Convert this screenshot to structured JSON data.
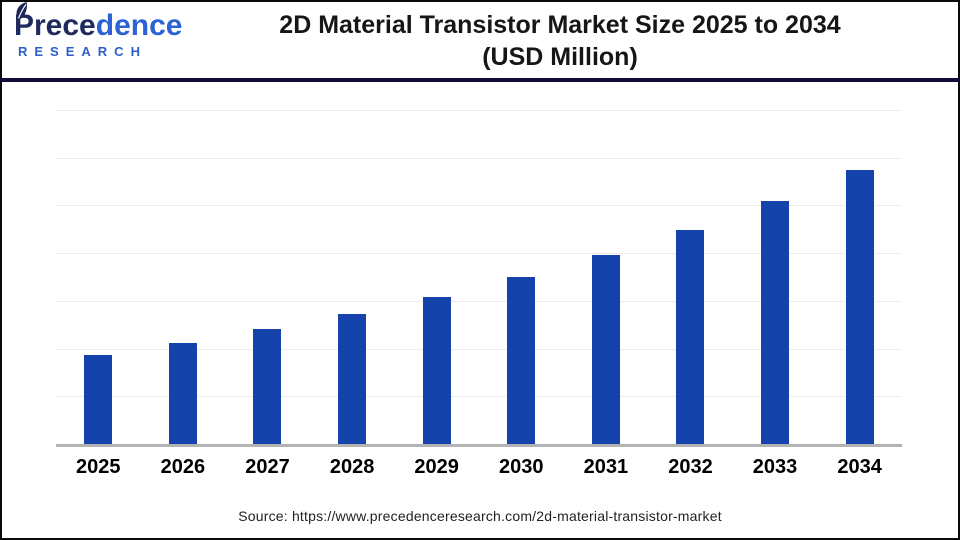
{
  "logo": {
    "brand_part1": "Prece",
    "brand_part2": "dence",
    "research": "RESEARCH"
  },
  "header": {
    "title_line1": "2D Material Transistor Market Size 2025 to 2034",
    "title_line2": "(USD Million)"
  },
  "footer": {
    "source_text": "Source: https://www.precedenceresearch.com/2d-material-transistor-market"
  },
  "colors": {
    "bar": "#1642ac",
    "header_divider": "#0d0d35",
    "axis_line": "#b3b3b3",
    "gridline": "#ededed",
    "title_text": "#161616",
    "year_label": "#000000",
    "source_text": "#222222",
    "logo_navy": "#1f2a5e",
    "logo_blue": "#2c62d4"
  },
  "chart_data": {
    "type": "bar",
    "title": "2D Material Transistor Market Size 2025 to 2034 (USD Million)",
    "unit": "USD Million",
    "categories": [
      "2025",
      "2026",
      "2027",
      "2028",
      "2029",
      "2030",
      "2031",
      "2032",
      "2033",
      "2034"
    ],
    "values": [
      187.4,
      212.3,
      240.5,
      272.5,
      308.7,
      349.7,
      396.2,
      448.9,
      508.5,
      575.3
    ],
    "xlabel": "",
    "ylabel": "",
    "ylim": [
      0,
      700
    ],
    "gridline_interval": 100,
    "grid": "horizontal",
    "legend_position": "none",
    "y_axis_labels_visible": false,
    "data_labels_visible": false,
    "values_estimated_from_gridlines": true
  }
}
